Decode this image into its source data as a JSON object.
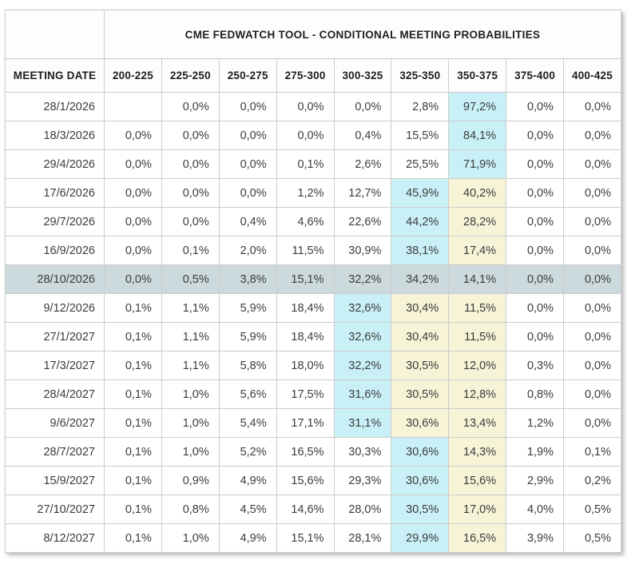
{
  "table": {
    "title": "CME FEDWATCH TOOL - CONDITIONAL MEETING PROBABILITIES",
    "meeting_date_header": "MEETING DATE",
    "rate_columns": [
      "200-225",
      "225-250",
      "250-275",
      "275-300",
      "300-325",
      "325-350",
      "350-375",
      "375-400",
      "400-425"
    ],
    "selected_row_date": "28/10/2026",
    "colors": {
      "cyan_highlight": "#c9f0f7",
      "yellow_highlight": "#f6f3d6",
      "selected_row": "#ccd9dd",
      "border": "#cccccc"
    }
  },
  "chart_data": {
    "type": "table",
    "title": "CME FEDWATCH TOOL - CONDITIONAL MEETING PROBABILITIES",
    "columns": [
      "MEETING DATE",
      "200-225",
      "225-250",
      "250-275",
      "275-300",
      "300-325",
      "325-350",
      "350-375",
      "375-400",
      "400-425"
    ],
    "unit": "%",
    "decimal_separator": ",",
    "rows": [
      {
        "date": "28/1/2026",
        "values": [
          null,
          0.0,
          0.0,
          0.0,
          0.0,
          2.8,
          97.2,
          0.0,
          0.0
        ],
        "highlights": [
          null,
          null,
          null,
          null,
          null,
          null,
          "cyan",
          null,
          null
        ],
        "selected": false
      },
      {
        "date": "18/3/2026",
        "values": [
          0.0,
          0.0,
          0.0,
          0.0,
          0.4,
          15.5,
          84.1,
          0.0,
          0.0
        ],
        "highlights": [
          null,
          null,
          null,
          null,
          null,
          null,
          "cyan",
          null,
          null
        ],
        "selected": false
      },
      {
        "date": "29/4/2026",
        "values": [
          0.0,
          0.0,
          0.0,
          0.1,
          2.6,
          25.5,
          71.9,
          0.0,
          0.0
        ],
        "highlights": [
          null,
          null,
          null,
          null,
          null,
          null,
          "cyan",
          null,
          null
        ],
        "selected": false
      },
      {
        "date": "17/6/2026",
        "values": [
          0.0,
          0.0,
          0.0,
          1.2,
          12.7,
          45.9,
          40.2,
          0.0,
          0.0
        ],
        "highlights": [
          null,
          null,
          null,
          null,
          null,
          "cyan",
          "yellow",
          null,
          null
        ],
        "selected": false
      },
      {
        "date": "29/7/2026",
        "values": [
          0.0,
          0.0,
          0.4,
          4.6,
          22.6,
          44.2,
          28.2,
          0.0,
          0.0
        ],
        "highlights": [
          null,
          null,
          null,
          null,
          null,
          "cyan",
          "yellow",
          null,
          null
        ],
        "selected": false
      },
      {
        "date": "16/9/2026",
        "values": [
          0.0,
          0.1,
          2.0,
          11.5,
          30.9,
          38.1,
          17.4,
          0.0,
          0.0
        ],
        "highlights": [
          null,
          null,
          null,
          null,
          null,
          "cyan",
          "yellow",
          null,
          null
        ],
        "selected": false
      },
      {
        "date": "28/10/2026",
        "values": [
          0.0,
          0.5,
          3.8,
          15.1,
          32.2,
          34.2,
          14.1,
          0.0,
          0.0
        ],
        "highlights": [
          null,
          null,
          null,
          null,
          null,
          null,
          null,
          null,
          null
        ],
        "selected": true
      },
      {
        "date": "9/12/2026",
        "values": [
          0.1,
          1.1,
          5.9,
          18.4,
          32.6,
          30.4,
          11.5,
          0.0,
          0.0
        ],
        "highlights": [
          null,
          null,
          null,
          null,
          "cyan",
          "yellow",
          "yellow",
          null,
          null
        ],
        "selected": false
      },
      {
        "date": "27/1/2027",
        "values": [
          0.1,
          1.1,
          5.9,
          18.4,
          32.6,
          30.4,
          11.5,
          0.0,
          0.0
        ],
        "highlights": [
          null,
          null,
          null,
          null,
          "cyan",
          "yellow",
          "yellow",
          null,
          null
        ],
        "selected": false
      },
      {
        "date": "17/3/2027",
        "values": [
          0.1,
          1.1,
          5.8,
          18.0,
          32.2,
          30.5,
          12.0,
          0.3,
          0.0
        ],
        "highlights": [
          null,
          null,
          null,
          null,
          "cyan",
          "yellow",
          "yellow",
          null,
          null
        ],
        "selected": false
      },
      {
        "date": "28/4/2027",
        "values": [
          0.1,
          1.0,
          5.6,
          17.5,
          31.6,
          30.5,
          12.8,
          0.8,
          0.0
        ],
        "highlights": [
          null,
          null,
          null,
          null,
          "cyan",
          "yellow",
          "yellow",
          null,
          null
        ],
        "selected": false
      },
      {
        "date": "9/6/2027",
        "values": [
          0.1,
          1.0,
          5.4,
          17.1,
          31.1,
          30.6,
          13.4,
          1.2,
          0.0
        ],
        "highlights": [
          null,
          null,
          null,
          null,
          "cyan",
          "yellow",
          "yellow",
          null,
          null
        ],
        "selected": false
      },
      {
        "date": "28/7/2027",
        "values": [
          0.1,
          1.0,
          5.2,
          16.5,
          30.3,
          30.6,
          14.3,
          1.9,
          0.1
        ],
        "highlights": [
          null,
          null,
          null,
          null,
          null,
          "cyan",
          "yellow",
          null,
          null
        ],
        "selected": false
      },
      {
        "date": "15/9/2027",
        "values": [
          0.1,
          0.9,
          4.9,
          15.6,
          29.3,
          30.6,
          15.6,
          2.9,
          0.2
        ],
        "highlights": [
          null,
          null,
          null,
          null,
          null,
          "cyan",
          "yellow",
          null,
          null
        ],
        "selected": false
      },
      {
        "date": "27/10/2027",
        "values": [
          0.1,
          0.8,
          4.5,
          14.6,
          28.0,
          30.5,
          17.0,
          4.0,
          0.5
        ],
        "highlights": [
          null,
          null,
          null,
          null,
          null,
          "cyan",
          "yellow",
          null,
          null
        ],
        "selected": false
      },
      {
        "date": "8/12/2027",
        "values": [
          0.1,
          1.0,
          4.9,
          15.1,
          28.1,
          29.9,
          16.5,
          3.9,
          0.5
        ],
        "highlights": [
          null,
          null,
          null,
          null,
          null,
          "cyan",
          "yellow",
          null,
          null
        ],
        "selected": false
      }
    ]
  }
}
